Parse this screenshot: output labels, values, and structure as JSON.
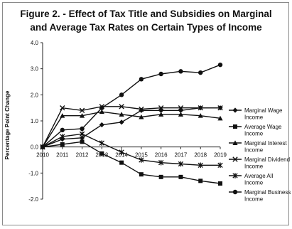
{
  "chart_data": {
    "type": "line",
    "title_line1": "Figure 2. - Effect of Tax Title and Subsidies on Marginal",
    "title_line2": "and Average Tax Rates on Certain Types of Income",
    "xlabel": "",
    "ylabel": "Percentage Point Change",
    "ylim": [
      -2.0,
      4.0
    ],
    "yticks": [
      "4.0",
      "3.0",
      "2.0",
      "1.0",
      "0.0",
      "-1.0",
      "-2.0"
    ],
    "ytick_values": [
      4,
      3,
      2,
      1,
      0,
      -1,
      -2
    ],
    "categories": [
      "2010",
      "2011",
      "2012",
      "2013",
      "2014",
      "2015",
      "2016",
      "2017",
      "2018",
      "2019"
    ],
    "grid": false,
    "legend_position": "right",
    "series": [
      {
        "name_lines": [
          "Marginal Wage",
          "Income"
        ],
        "marker": "diamond",
        "values": [
          0.0,
          0.3,
          0.35,
          0.85,
          0.95,
          1.4,
          1.4,
          1.4,
          1.5,
          1.5
        ]
      },
      {
        "name_lines": [
          "Average Wage",
          "Income"
        ],
        "marker": "square",
        "values": [
          0.0,
          0.1,
          0.2,
          -0.25,
          -0.6,
          -1.05,
          -1.15,
          -1.15,
          -1.3,
          -1.4
        ]
      },
      {
        "name_lines": [
          "Marginal Interest",
          "Income"
        ],
        "marker": "triangle",
        "values": [
          0.0,
          1.2,
          1.2,
          1.35,
          1.25,
          1.15,
          1.25,
          1.25,
          1.2,
          1.1
        ]
      },
      {
        "name_lines": [
          "Marginal Dividend",
          "Income"
        ],
        "marker": "x",
        "values": [
          0.0,
          1.5,
          1.4,
          1.55,
          1.55,
          1.45,
          1.5,
          1.5,
          1.5,
          1.5
        ]
      },
      {
        "name_lines": [
          "Average All",
          "Income"
        ],
        "marker": "star",
        "values": [
          0.0,
          0.4,
          0.5,
          0.15,
          -0.2,
          -0.5,
          -0.6,
          -0.65,
          -0.7,
          -0.7
        ]
      },
      {
        "name_lines": [
          "Marginal Business",
          "Income"
        ],
        "marker": "circle",
        "values": [
          0.0,
          0.65,
          0.7,
          1.5,
          2.0,
          2.6,
          2.8,
          2.9,
          2.85,
          3.15
        ]
      }
    ]
  }
}
